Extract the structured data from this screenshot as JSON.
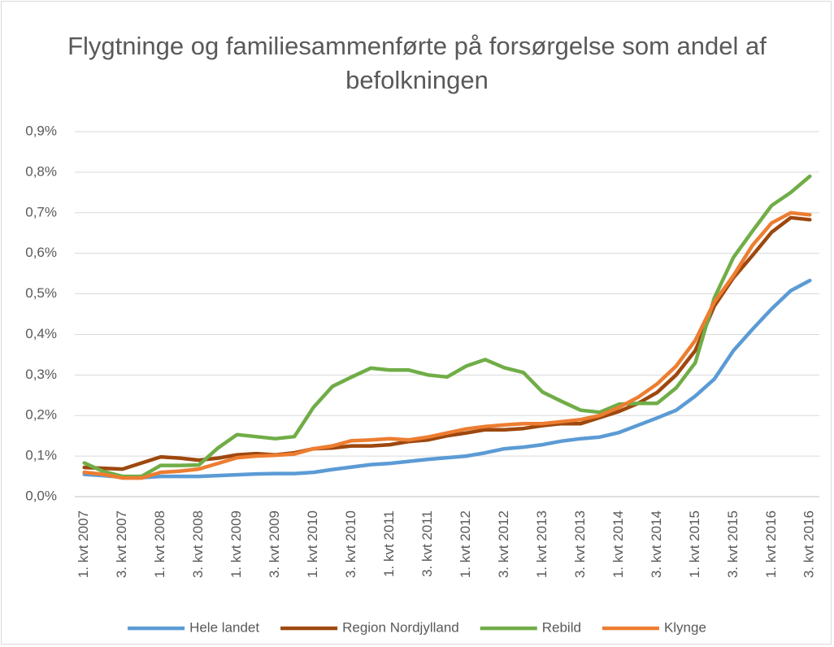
{
  "chart_data": {
    "type": "line",
    "title": "Flygtninge og familiesammenførte på forsørgelse som andel af befolkningen",
    "categories": [
      "1. kvt 2007",
      null,
      "3. kvt 2007",
      null,
      "1. kvt 2008",
      null,
      "3. kvt 2008",
      null,
      "1. kvt 2009",
      null,
      "3. kvt 2009",
      null,
      "1. kvt 2010",
      null,
      "3. kvt 2010",
      null,
      "1. kvt 2011",
      null,
      "3. kvt 2011",
      null,
      "1. kvt 2012",
      null,
      "3. kvt 2012",
      null,
      "1. kvt 2013",
      null,
      "3. kvt 2013",
      null,
      "1. kvt 2014",
      null,
      "3. kvt 2014",
      null,
      "1. kvt 2015",
      null,
      "3. kvt 2015",
      null,
      "1. kvt 2016",
      null,
      "3. kvt 2016"
    ],
    "series": [
      {
        "name": "Hele landet",
        "color": "#5b9bd5",
        "values": [
          0.055,
          0.052,
          0.048,
          0.047,
          0.05,
          0.05,
          0.05,
          0.052,
          0.054,
          0.056,
          0.057,
          0.057,
          0.06,
          0.067,
          0.073,
          0.079,
          0.082,
          0.087,
          0.092,
          0.096,
          0.1,
          0.108,
          0.118,
          0.122,
          0.128,
          0.137,
          0.143,
          0.147,
          0.158,
          0.176,
          0.194,
          0.213,
          0.248,
          0.29,
          0.36,
          0.413,
          0.463,
          0.508,
          0.533
        ]
      },
      {
        "name": "Region Nordjylland",
        "color": "#9e480e",
        "values": [
          0.072,
          0.07,
          0.068,
          0.083,
          0.098,
          0.095,
          0.09,
          0.095,
          0.103,
          0.106,
          0.103,
          0.108,
          0.118,
          0.12,
          0.125,
          0.125,
          0.128,
          0.136,
          0.14,
          0.15,
          0.157,
          0.165,
          0.165,
          0.168,
          0.175,
          0.18,
          0.18,
          0.195,
          0.21,
          0.23,
          0.257,
          0.3,
          0.36,
          0.47,
          0.54,
          0.595,
          0.652,
          0.688,
          0.683
        ]
      },
      {
        "name": "Rebild",
        "color": "#70ad47",
        "values": [
          0.083,
          0.062,
          0.05,
          0.05,
          0.077,
          0.077,
          0.078,
          0.12,
          0.153,
          0.148,
          0.143,
          0.148,
          0.22,
          0.272,
          0.295,
          0.317,
          0.312,
          0.312,
          0.3,
          0.295,
          0.322,
          0.338,
          0.318,
          0.306,
          0.258,
          0.235,
          0.213,
          0.208,
          0.228,
          0.23,
          0.23,
          0.268,
          0.33,
          0.49,
          0.59,
          0.655,
          0.718,
          0.75,
          0.79
        ]
      },
      {
        "name": "Klynge",
        "color": "#ed7d31",
        "values": [
          0.06,
          0.055,
          0.046,
          0.046,
          0.06,
          0.063,
          0.068,
          0.082,
          0.096,
          0.1,
          0.102,
          0.105,
          0.118,
          0.125,
          0.138,
          0.14,
          0.143,
          0.14,
          0.147,
          0.157,
          0.167,
          0.173,
          0.177,
          0.18,
          0.18,
          0.185,
          0.19,
          0.2,
          0.22,
          0.245,
          0.278,
          0.322,
          0.385,
          0.48,
          0.545,
          0.62,
          0.675,
          0.7,
          0.695
        ]
      }
    ],
    "ylim": [
      0,
      0.9
    ],
    "yticks": [
      {
        "value": 0,
        "label": "0,0%"
      },
      {
        "value": 0.1,
        "label": "0,1%"
      },
      {
        "value": 0.2,
        "label": "0,2%"
      },
      {
        "value": 0.3,
        "label": "0,3%"
      },
      {
        "value": 0.4,
        "label": "0,4%"
      },
      {
        "value": 0.5,
        "label": "0,5%"
      },
      {
        "value": 0.6,
        "label": "0,6%"
      },
      {
        "value": 0.7,
        "label": "0,7%"
      },
      {
        "value": 0.8,
        "label": "0,8%"
      },
      {
        "value": 0.9,
        "label": "0,9%"
      }
    ],
    "grid": true,
    "legend": "bottom"
  }
}
